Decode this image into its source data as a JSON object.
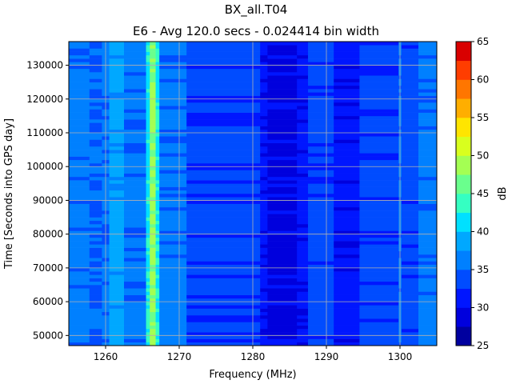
{
  "chart_data": {
    "type": "heatmap",
    "suptitle": "BX_all.T04",
    "title": "E6 - Avg 120.0 secs - 0.024414 bin width",
    "xlabel": "Frequency (MHz)",
    "ylabel": "Time [Seconds into GPS day]",
    "colorbar_label": "dB",
    "xlim": [
      1255,
      1305
    ],
    "ylim": [
      47000,
      137000
    ],
    "xticks": [
      1260,
      1270,
      1280,
      1290,
      1300
    ],
    "yticks": [
      50000,
      60000,
      70000,
      80000,
      90000,
      100000,
      110000,
      120000,
      130000
    ],
    "colorbar_ticks": [
      25,
      30,
      35,
      40,
      45,
      50,
      55,
      60,
      65
    ],
    "colorbar_levels": [
      25,
      27.5,
      30,
      32.5,
      35,
      37.5,
      40,
      42.5,
      45,
      47.5,
      50,
      52.5,
      55,
      57.5,
      60,
      62.5,
      65
    ],
    "colorbar_colors": [
      "#00009f",
      "#0000dd",
      "#0016ff",
      "#004cff",
      "#0080ff",
      "#00a8ff",
      "#00e0ff",
      "#35ffc2",
      "#6aff8d",
      "#a4ff53",
      "#d9ff1e",
      "#ffe500",
      "#ffae00",
      "#ff7600",
      "#ff3d00",
      "#d90000",
      "#9f0000"
    ],
    "grid": true,
    "frequency_profile_db": [
      {
        "from": 1255.0,
        "to": 1257.8,
        "db": 36
      },
      {
        "from": 1257.8,
        "to": 1259.5,
        "db": 34.5
      },
      {
        "from": 1259.5,
        "to": 1260.5,
        "db": 36
      },
      {
        "from": 1260.5,
        "to": 1262.5,
        "db": 38.5
      },
      {
        "from": 1262.5,
        "to": 1265.5,
        "db": 36
      },
      {
        "from": 1265.5,
        "to": 1266.0,
        "db": 42
      },
      {
        "from": 1266.0,
        "to": 1266.8,
        "db": 48
      },
      {
        "from": 1266.8,
        "to": 1267.3,
        "db": 42
      },
      {
        "from": 1267.3,
        "to": 1271.0,
        "db": 36
      },
      {
        "from": 1271.0,
        "to": 1281.0,
        "db": 33.5
      },
      {
        "from": 1281.0,
        "to": 1282.0,
        "db": 31
      },
      {
        "from": 1282.0,
        "to": 1286.0,
        "db": 29
      },
      {
        "from": 1286.0,
        "to": 1287.5,
        "db": 31
      },
      {
        "from": 1287.5,
        "to": 1291.0,
        "db": 33.5
      },
      {
        "from": 1291.0,
        "to": 1294.5,
        "db": 31
      },
      {
        "from": 1294.5,
        "to": 1299.8,
        "db": 33.5
      },
      {
        "from": 1299.8,
        "to": 1300.2,
        "db": 36
      },
      {
        "from": 1300.2,
        "to": 1302.5,
        "db": 33.5
      },
      {
        "from": 1302.5,
        "to": 1305.0,
        "db": 36
      }
    ]
  }
}
